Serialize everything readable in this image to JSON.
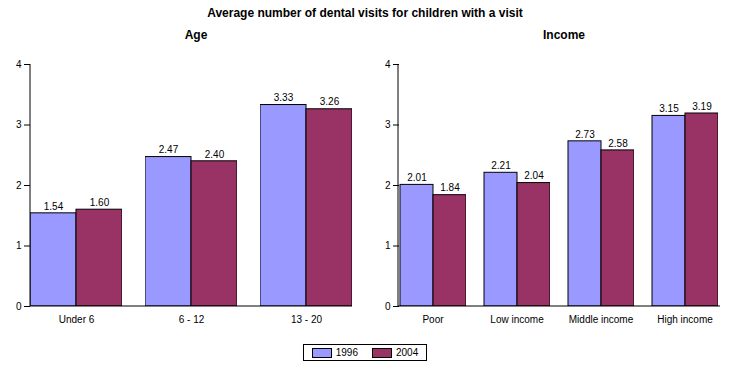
{
  "title": "Average number of dental visits for children with a visit",
  "chart_data": [
    {
      "type": "bar",
      "title": "Age",
      "categories": [
        "Under 6",
        "6 - 12",
        "13 - 20"
      ],
      "series": [
        {
          "name": "1996",
          "color": "#9999ff",
          "values": [
            1.54,
            2.47,
            3.33
          ],
          "value_labels": [
            "1.54",
            "2.47",
            "3.33"
          ]
        },
        {
          "name": "2004",
          "color": "#993366",
          "values": [
            1.6,
            2.4,
            3.26
          ],
          "value_labels": [
            "1.60",
            "2.40",
            "3.26"
          ]
        }
      ],
      "ylim": [
        0,
        4
      ],
      "yticks": [
        0,
        1,
        2,
        3,
        4
      ],
      "grid": false,
      "data_labels": true,
      "legend": "bottom"
    },
    {
      "type": "bar",
      "title": "Income",
      "categories": [
        "Poor",
        "Low income",
        "Middle income",
        "High income"
      ],
      "series": [
        {
          "name": "1996",
          "color": "#9999ff",
          "values": [
            2.01,
            2.21,
            2.73,
            3.15
          ]
        },
        {
          "name": "2004",
          "color": "#993366",
          "values": [
            1.84,
            2.04,
            2.58,
            3.19
          ]
        }
      ],
      "ylim": [
        0,
        4
      ],
      "yticks": [
        0,
        1,
        2,
        3,
        4
      ],
      "grid": false,
      "data_labels": true,
      "legend": "bottom"
    }
  ]
}
